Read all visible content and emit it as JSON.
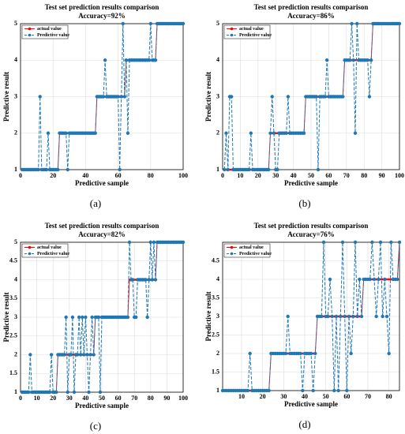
{
  "chart_data": [
    {
      "type": "line",
      "title": "Test set prediction results comparison",
      "subtitle": "Accuracy=92%",
      "x_label": "Predictive sample",
      "y_label": "Predictive result",
      "panel_label": "(a)",
      "xlim": [
        0,
        100
      ],
      "xticks": [
        0,
        20,
        40,
        60,
        80,
        100
      ],
      "ylim": [
        1,
        5
      ],
      "yticks": [
        1,
        2,
        3,
        4,
        5
      ],
      "grid": true,
      "legend": "upper left",
      "x": [
        1,
        2,
        3,
        4,
        5,
        6,
        7,
        8,
        9,
        10,
        11,
        12,
        13,
        14,
        15,
        16,
        17,
        18,
        19,
        20,
        21,
        22,
        23,
        24,
        25,
        26,
        27,
        28,
        29,
        30,
        31,
        32,
        33,
        34,
        35,
        36,
        37,
        38,
        39,
        40,
        41,
        42,
        43,
        44,
        45,
        46,
        47,
        48,
        49,
        50,
        51,
        52,
        53,
        54,
        55,
        56,
        57,
        58,
        59,
        60,
        61,
        62,
        63,
        64,
        65,
        66,
        67,
        68,
        69,
        70,
        71,
        72,
        73,
        74,
        75,
        76,
        77,
        78,
        79,
        80,
        81,
        82,
        83,
        84,
        85,
        86,
        87,
        88,
        89,
        90,
        91,
        92,
        93,
        94,
        95,
        96,
        97,
        98,
        99,
        100
      ],
      "series": [
        {
          "name": "actual value",
          "color": "#ff0000",
          "dashed": false,
          "values": [
            1,
            1,
            1,
            1,
            1,
            1,
            1,
            1,
            1,
            1,
            1,
            1,
            1,
            1,
            1,
            1,
            1,
            1,
            1,
            1,
            1,
            1,
            1,
            2,
            2,
            2,
            2,
            2,
            2,
            2,
            2,
            2,
            2,
            2,
            2,
            2,
            2,
            2,
            2,
            2,
            2,
            2,
            2,
            2,
            2,
            2,
            3,
            3,
            3,
            3,
            3,
            3,
            3,
            3,
            3,
            3,
            3,
            3,
            3,
            3,
            3,
            3,
            3,
            3,
            4,
            4,
            4,
            4,
            4,
            4,
            4,
            4,
            4,
            4,
            4,
            4,
            4,
            4,
            4,
            4,
            4,
            4,
            4,
            5,
            5,
            5,
            5,
            5,
            5,
            5,
            5,
            5,
            5,
            5,
            5,
            5,
            5,
            5,
            5,
            5
          ]
        },
        {
          "name": "Predictive value",
          "color": "#1f77b4",
          "dashed": true,
          "values": [
            1,
            1,
            1,
            1,
            1,
            1,
            1,
            1,
            1,
            1,
            1,
            3,
            1,
            1,
            1,
            1,
            2,
            1,
            1,
            1,
            1,
            1,
            1,
            2,
            2,
            2,
            2,
            2,
            1,
            2,
            2,
            2,
            2,
            2,
            2,
            2,
            2,
            2,
            2,
            2,
            2,
            2,
            2,
            2,
            2,
            2,
            3,
            3,
            3,
            3,
            3,
            4,
            3,
            3,
            3,
            3,
            3,
            3,
            3,
            3,
            1,
            3,
            5,
            3,
            4,
            2,
            4,
            4,
            4,
            4,
            4,
            4,
            4,
            4,
            4,
            4,
            4,
            4,
            4,
            5,
            4,
            4,
            4,
            5,
            5,
            5,
            5,
            5,
            5,
            5,
            5,
            5,
            5,
            5,
            5,
            5,
            5,
            5,
            5,
            5
          ]
        }
      ]
    },
    {
      "type": "line",
      "title": "Test set prediction results comparison",
      "subtitle": "Accuracy=86%",
      "x_label": "Predictive sample",
      "y_label": "Predictive result",
      "panel_label": "(b)",
      "xlim": [
        0,
        100
      ],
      "xticks": [
        0,
        10,
        20,
        30,
        40,
        50,
        60,
        70,
        80,
        90,
        100
      ],
      "ylim": [
        1,
        5
      ],
      "yticks": [
        1,
        2,
        3,
        4,
        5
      ],
      "grid": true,
      "legend": "upper left",
      "x": [
        1,
        2,
        3,
        4,
        5,
        6,
        7,
        8,
        9,
        10,
        11,
        12,
        13,
        14,
        15,
        16,
        17,
        18,
        19,
        20,
        21,
        22,
        23,
        24,
        25,
        26,
        27,
        28,
        29,
        30,
        31,
        32,
        33,
        34,
        35,
        36,
        37,
        38,
        39,
        40,
        41,
        42,
        43,
        44,
        45,
        46,
        47,
        48,
        49,
        50,
        51,
        52,
        53,
        54,
        55,
        56,
        57,
        58,
        59,
        60,
        61,
        62,
        63,
        64,
        65,
        66,
        67,
        68,
        69,
        70,
        71,
        72,
        73,
        74,
        75,
        76,
        77,
        78,
        79,
        80,
        81,
        82,
        83,
        84,
        85,
        86,
        87,
        88,
        89,
        90,
        91,
        92,
        93,
        94,
        95,
        96,
        97,
        98,
        99,
        100
      ],
      "series": [
        {
          "name": "actual value",
          "color": "#ff0000",
          "dashed": false,
          "values": [
            1,
            1,
            1,
            1,
            1,
            1,
            1,
            1,
            1,
            1,
            1,
            1,
            1,
            1,
            1,
            1,
            1,
            1,
            1,
            1,
            1,
            1,
            1,
            1,
            1,
            1,
            2,
            2,
            2,
            2,
            2,
            2,
            2,
            2,
            2,
            2,
            2,
            2,
            2,
            2,
            2,
            2,
            2,
            2,
            2,
            2,
            3,
            3,
            3,
            3,
            3,
            3,
            3,
            3,
            3,
            3,
            3,
            3,
            3,
            3,
            3,
            3,
            3,
            3,
            3,
            3,
            3,
            3,
            4,
            4,
            4,
            4,
            4,
            4,
            4,
            4,
            4,
            4,
            4,
            4,
            4,
            4,
            4,
            4,
            5,
            5,
            5,
            5,
            5,
            5,
            5,
            5,
            5,
            5,
            5,
            5,
            5,
            5,
            5,
            5
          ]
        },
        {
          "name": "Predictive value",
          "color": "#1f77b4",
          "dashed": true,
          "values": [
            1,
            2,
            1,
            3,
            3,
            1,
            1,
            1,
            1,
            1,
            1,
            1,
            1,
            1,
            1,
            2,
            1,
            1,
            1,
            1,
            1,
            1,
            1,
            1,
            1,
            1,
            2,
            3,
            2,
            1,
            1,
            2,
            2,
            2,
            2,
            2,
            3,
            2,
            2,
            2,
            2,
            2,
            2,
            2,
            2,
            2,
            3,
            3,
            3,
            3,
            3,
            3,
            3,
            1,
            3,
            3,
            3,
            3,
            4,
            3,
            3,
            3,
            3,
            3,
            3,
            3,
            3,
            3,
            4,
            4,
            4,
            4,
            5,
            4,
            2,
            5,
            4,
            4,
            4,
            4,
            4,
            4,
            3,
            4,
            5,
            5,
            5,
            5,
            5,
            5,
            5,
            5,
            5,
            5,
            5,
            5,
            5,
            5,
            5,
            5
          ]
        }
      ]
    },
    {
      "type": "line",
      "title": "Test set prediction results comparison",
      "subtitle": "Accuracy=82%",
      "x_label": "Predictive sample",
      "y_label": "Predictive result",
      "panel_label": "(c)",
      "xlim": [
        0,
        100
      ],
      "xticks": [
        0,
        10,
        20,
        30,
        40,
        50,
        60,
        70,
        80,
        90,
        100
      ],
      "ylim": [
        1,
        5
      ],
      "yticks": [
        1,
        1.5,
        2,
        2.5,
        3,
        3.5,
        4,
        4.5,
        5
      ],
      "grid": true,
      "legend": "upper left",
      "x": [
        1,
        2,
        3,
        4,
        5,
        6,
        7,
        8,
        9,
        10,
        11,
        12,
        13,
        14,
        15,
        16,
        17,
        18,
        19,
        20,
        21,
        22,
        23,
        24,
        25,
        26,
        27,
        28,
        29,
        30,
        31,
        32,
        33,
        34,
        35,
        36,
        37,
        38,
        39,
        40,
        41,
        42,
        43,
        44,
        45,
        46,
        47,
        48,
        49,
        50,
        51,
        52,
        53,
        54,
        55,
        56,
        57,
        58,
        59,
        60,
        61,
        62,
        63,
        64,
        65,
        66,
        67,
        68,
        69,
        70,
        71,
        72,
        73,
        74,
        75,
        76,
        77,
        78,
        79,
        80,
        81,
        82,
        83,
        84,
        85,
        86,
        87,
        88,
        89,
        90,
        91,
        92,
        93,
        94,
        95,
        96,
        97,
        98,
        99,
        100
      ],
      "series": [
        {
          "name": "actual value",
          "color": "#ff0000",
          "dashed": false,
          "values": [
            1,
            1,
            1,
            1,
            1,
            1,
            1,
            1,
            1,
            1,
            1,
            1,
            1,
            1,
            1,
            1,
            1,
            1,
            1,
            1,
            1,
            1,
            2,
            2,
            2,
            2,
            2,
            2,
            2,
            2,
            2,
            2,
            2,
            2,
            2,
            2,
            2,
            2,
            2,
            2,
            2,
            2,
            2,
            2,
            2,
            3,
            3,
            3,
            3,
            3,
            3,
            3,
            3,
            3,
            3,
            3,
            3,
            3,
            3,
            3,
            3,
            3,
            3,
            3,
            3,
            3,
            4,
            4,
            4,
            4,
            4,
            4,
            4,
            4,
            4,
            4,
            4,
            4,
            4,
            4,
            4,
            4,
            4,
            5,
            5,
            5,
            5,
            5,
            5,
            5,
            5,
            5,
            5,
            5,
            5,
            5,
            5,
            5,
            5,
            5
          ]
        },
        {
          "name": "Predictive value",
          "color": "#1f77b4",
          "dashed": true,
          "values": [
            1,
            1,
            1,
            1,
            1,
            2,
            1,
            1,
            1,
            1,
            1,
            1,
            1,
            1,
            1,
            1,
            1,
            1,
            2,
            1,
            1,
            1,
            2,
            2,
            2,
            2,
            2,
            3,
            1,
            2,
            2,
            3,
            1,
            2,
            2,
            3,
            2,
            3,
            2,
            3,
            2,
            1,
            2,
            3,
            2,
            3,
            3,
            3,
            1,
            3,
            3,
            3,
            3,
            3,
            3,
            3,
            3,
            3,
            3,
            3,
            3,
            3,
            3,
            3,
            3,
            3,
            5,
            4,
            4,
            3,
            3,
            4,
            4,
            4,
            4,
            4,
            4,
            3,
            4,
            5,
            4,
            5,
            4,
            5,
            5,
            5,
            5,
            5,
            5,
            5,
            5,
            5,
            5,
            5,
            5,
            5,
            5,
            5,
            5,
            5
          ]
        }
      ]
    },
    {
      "type": "line",
      "title": "Test set prediction results comparison",
      "subtitle": "Accuracy=76%",
      "x_label": "Predictive sample",
      "y_label": "Predictive result",
      "panel_label": "(d)",
      "xlim": [
        1,
        85
      ],
      "xticks": [
        10,
        20,
        30,
        40,
        50,
        60,
        70,
        80
      ],
      "ylim": [
        1,
        5
      ],
      "yticks": [
        1,
        1.5,
        2,
        2.5,
        3,
        3.5,
        4,
        4.5
      ],
      "grid": true,
      "legend": "upper left",
      "x": [
        1,
        2,
        3,
        4,
        5,
        6,
        7,
        8,
        9,
        10,
        11,
        12,
        13,
        14,
        15,
        16,
        17,
        18,
        19,
        20,
        21,
        22,
        23,
        24,
        25,
        26,
        27,
        28,
        29,
        30,
        31,
        32,
        33,
        34,
        35,
        36,
        37,
        38,
        39,
        40,
        41,
        42,
        43,
        44,
        45,
        46,
        47,
        48,
        49,
        50,
        51,
        52,
        53,
        54,
        55,
        56,
        57,
        58,
        59,
        60,
        61,
        62,
        63,
        64,
        65,
        66,
        67,
        68,
        69,
        70,
        71,
        72,
        73,
        74,
        75,
        76,
        77,
        78,
        79,
        80,
        81,
        82,
        83,
        84,
        85
      ],
      "series": [
        {
          "name": "actual value",
          "color": "#ff0000",
          "dashed": false,
          "values": [
            1,
            1,
            1,
            1,
            1,
            1,
            1,
            1,
            1,
            1,
            1,
            1,
            1,
            1,
            1,
            1,
            1,
            1,
            1,
            1,
            1,
            1,
            1,
            2,
            2,
            2,
            2,
            2,
            2,
            2,
            2,
            2,
            2,
            2,
            2,
            2,
            2,
            2,
            2,
            2,
            2,
            2,
            2,
            2,
            2,
            3,
            3,
            3,
            3,
            3,
            3,
            3,
            3,
            3,
            3,
            3,
            3,
            3,
            3,
            3,
            3,
            3,
            3,
            3,
            3,
            3,
            3,
            4,
            4,
            4,
            4,
            4,
            4,
            4,
            4,
            4,
            4,
            4,
            4,
            4,
            4,
            4,
            4,
            4,
            5
          ]
        },
        {
          "name": "Predictive value",
          "color": "#1f77b4",
          "dashed": true,
          "values": [
            1,
            1,
            1,
            1,
            1,
            1,
            1,
            1,
            1,
            1,
            1,
            1,
            1,
            2,
            1,
            1,
            1,
            1,
            1,
            1,
            1,
            1,
            1,
            2,
            2,
            2,
            2,
            2,
            2,
            2,
            2,
            3,
            2,
            2,
            2,
            2,
            2,
            2,
            1,
            2,
            2,
            2,
            2,
            1,
            2,
            3,
            3,
            3,
            5,
            3,
            3,
            4,
            3,
            1,
            3,
            1,
            3,
            5,
            3,
            1,
            3,
            2,
            3,
            5,
            3,
            4,
            3,
            4,
            4,
            4,
            4,
            5,
            4,
            3,
            4,
            5,
            3,
            4,
            3,
            2,
            5,
            4,
            4,
            4,
            5
          ]
        }
      ]
    }
  ]
}
